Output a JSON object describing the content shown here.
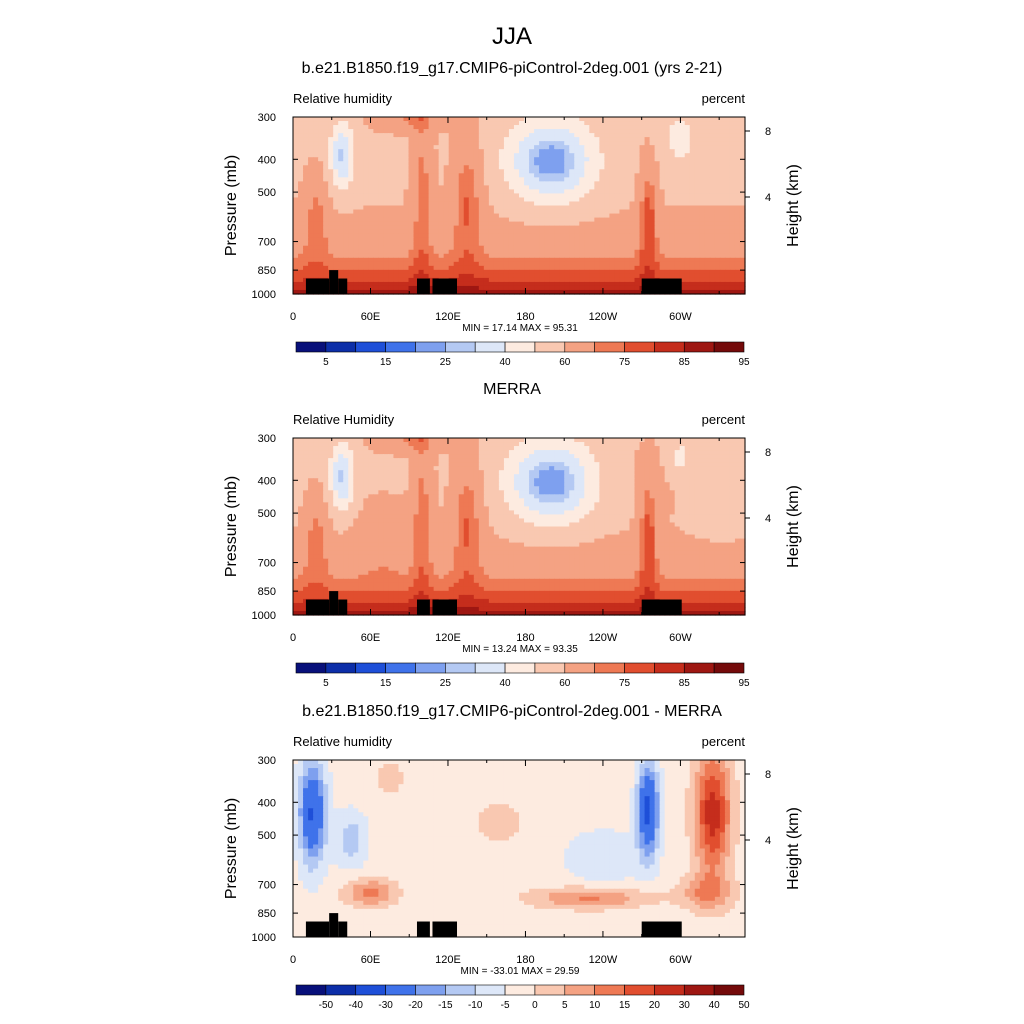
{
  "main_title": "JJA",
  "chart_data": [
    {
      "type": "heatmap",
      "title": "b.e21.B1850.f19_g17.CMIP6-piControl-2deg.001 (yrs 2-21)",
      "left_label": "Relative humidity",
      "right_label": "percent",
      "ylabel": "Pressure (mb)",
      "y2label": "Height (km)",
      "yticks": [
        "300",
        "400",
        "500",
        "700",
        "850",
        "1000"
      ],
      "y2ticks": [
        "8",
        "4"
      ],
      "xticks": [
        "0",
        "60E",
        "120E",
        "180",
        "120W",
        "60W"
      ],
      "stats": "MIN = 17.14  MAX = 95.31",
      "colorbar_labels": [
        "5",
        "15",
        "25",
        "40",
        "60",
        "75",
        "85",
        "95"
      ],
      "min": 17.14,
      "max": 95.31,
      "palette": "full"
    },
    {
      "type": "heatmap",
      "title": "MERRA",
      "left_label": "Relative Humidity",
      "right_label": "percent",
      "ylabel": "Pressure (mb)",
      "y2label": "Height (km)",
      "yticks": [
        "300",
        "400",
        "500",
        "700",
        "850",
        "1000"
      ],
      "y2ticks": [
        "8",
        "4"
      ],
      "xticks": [
        "0",
        "60E",
        "120E",
        "180",
        "120W",
        "60W"
      ],
      "stats": "MIN = 13.24  MAX = 93.35",
      "colorbar_labels": [
        "5",
        "15",
        "25",
        "40",
        "60",
        "75",
        "85",
        "95"
      ],
      "min": 13.24,
      "max": 93.35,
      "palette": "full"
    },
    {
      "type": "heatmap",
      "title": "b.e21.B1850.f19_g17.CMIP6-piControl-2deg.001 - MERRA",
      "left_label": "Relative humidity",
      "right_label": "percent",
      "ylabel": "Pressure (mb)",
      "y2label": "Height (km)",
      "yticks": [
        "300",
        "400",
        "500",
        "700",
        "850",
        "1000"
      ],
      "y2ticks": [
        "8",
        "4"
      ],
      "xticks": [
        "0",
        "60E",
        "120E",
        "180",
        "120W",
        "60W"
      ],
      "stats": "MIN = -33.01  MAX = 29.59",
      "colorbar_labels": [
        "-50",
        "-40",
        "-30",
        "-20",
        "-15",
        "-10",
        "-5",
        "0",
        "5",
        "10",
        "15",
        "20",
        "30",
        "40",
        "50"
      ],
      "min": -33.01,
      "max": 29.59,
      "palette": "diff"
    }
  ],
  "colors": {
    "full": [
      "#08107a",
      "#0c2ea8",
      "#1e4fd8",
      "#3f72ea",
      "#7ea0ef",
      "#b4c9f3",
      "#dde7f8",
      "#fdebe0",
      "#f9c8b1",
      "#f4a283",
      "#ee7954",
      "#e14e2f",
      "#c52d1c",
      "#9e1712",
      "#740a0a"
    ],
    "diff": [
      "#08107a",
      "#0c2ea8",
      "#1e4fd8",
      "#3f72ea",
      "#7ea0ef",
      "#b4c9f3",
      "#dde7f8",
      "#fdebe0",
      "#f9c8b1",
      "#f4a283",
      "#ee7954",
      "#e14e2f",
      "#c52d1c",
      "#9e1712",
      "#740a0a"
    ]
  }
}
